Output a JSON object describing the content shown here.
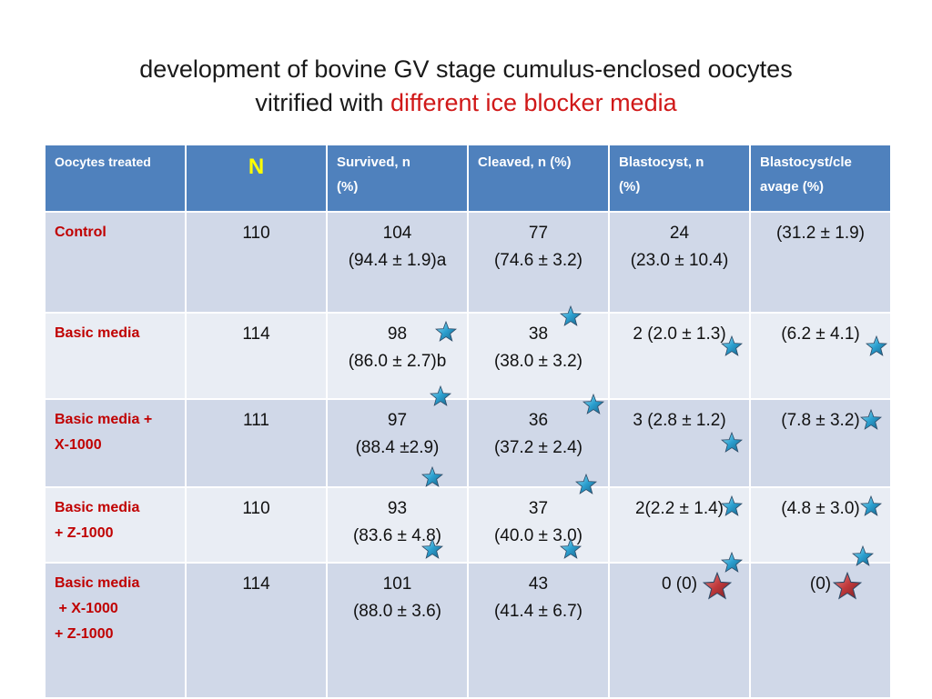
{
  "title": {
    "line1": "development of bovine GV stage cumulus-enclosed oocytes",
    "line2_prefix": "vitrified with ",
    "line2_highlight": "different ice blocker media"
  },
  "table": {
    "headers": [
      "Oocytes treated",
      "N",
      "Survived, n (%)",
      "Cleaved, n (%)",
      "Blastocyst, n (%)",
      "Blastocyst/cleavage (%)"
    ],
    "header_lines": {
      "survived": [
        "Survived, n",
        "(%)"
      ],
      "blastocyst": [
        "Blastocyst, n",
        "(%)"
      ],
      "bl_cleavage": [
        "Blastocyst/cle",
        "avage (%)"
      ]
    },
    "rows": [
      {
        "label": [
          "Control"
        ],
        "n": "110",
        "survived": [
          "104",
          "(94.4 ± 1.9)a"
        ],
        "cleaved": [
          "77",
          "(74.6 ± 3.2)"
        ],
        "blastocyst": [
          "24",
          "(23.0 ± 10.4)"
        ],
        "bl_cleavage": [
          "(31.2 ± 1.9)"
        ]
      },
      {
        "label": [
          "Basic media"
        ],
        "n": "114",
        "survived": [
          "98",
          "(86.0 ± 2.7)b"
        ],
        "cleaved": [
          "38",
          "(38.0 ± 3.2)"
        ],
        "blastocyst": [
          "2 (2.0 ± 1.3)"
        ],
        "bl_cleavage": [
          "(6.2 ± 4.1)"
        ]
      },
      {
        "label": [
          "Basic media +",
          "X-1000"
        ],
        "n": "111",
        "survived": [
          "97",
          "(88.4 ±2.9)"
        ],
        "cleaved": [
          "36",
          "(37.2 ± 2.4)"
        ],
        "blastocyst": [
          "3 (2.8 ± 1.2)"
        ],
        "bl_cleavage": [
          "(7.8 ± 3.2)"
        ]
      },
      {
        "label": [
          "Basic media",
          "+ Z-1000"
        ],
        "n": "110",
        "survived": [
          "93",
          "(83.6 ± 4.8)"
        ],
        "cleaved": [
          "37",
          "(40.0 ± 3.0)"
        ],
        "blastocyst": [
          "2(2.2 ± 1.4)"
        ],
        "bl_cleavage": [
          "(4.8 ± 3.0)"
        ]
      },
      {
        "label": [
          "Basic media",
          " + X-1000",
          "+ Z-1000"
        ],
        "n": "114",
        "survived": [
          "101",
          "(88.0 ± 3.6)"
        ],
        "cleaved": [
          "43",
          "(41.4 ± 6.7)"
        ],
        "blastocyst": [
          "0 (0)"
        ],
        "bl_cleavage": [
          "(0)"
        ]
      }
    ]
  },
  "markers": {
    "blue_star_color": "#2a9fcf",
    "red_star_color": "#c0393b",
    "blue_star_icon": "star-icon",
    "red_star_icon": "star-icon"
  },
  "colors": {
    "header_bg": "#4f81bd",
    "header_n": "#ffff00",
    "row_label": "#c00000",
    "title_highlight": "#d01818"
  }
}
